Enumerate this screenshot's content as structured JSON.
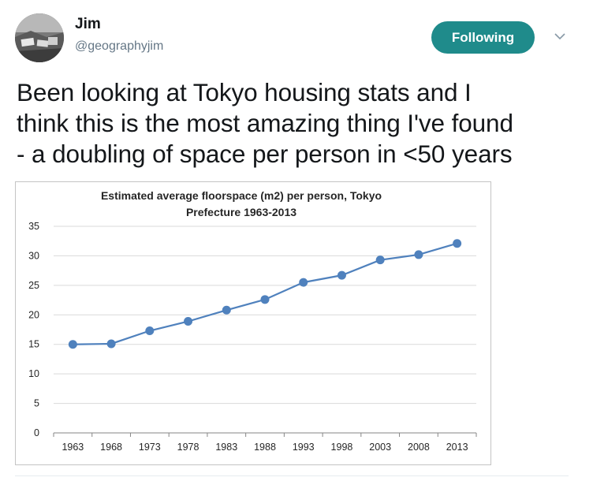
{
  "tweet": {
    "name": "Jim",
    "handle": "@geographyjim",
    "follow_label": "Following",
    "text_lines": [
      "Been looking at Tokyo housing stats and I",
      "think this is the most amazing thing I've found",
      "- a doubling of space per person in <50 years"
    ],
    "icons": {
      "more": "chevron-down-icon",
      "avatar": "profile-photo"
    },
    "colors": {
      "follow_button": "#1f8b8b",
      "line": "#4f81bd",
      "gridline": "#d9d9d9"
    }
  },
  "chart_data": {
    "type": "line",
    "title_lines": [
      "Estimated average floorspace (m2) per person, Tokyo",
      "Prefecture 1963-2013"
    ],
    "xlabel": "",
    "ylabel": "",
    "categories": [
      "1963",
      "1968",
      "1973",
      "1978",
      "1983",
      "1988",
      "1993",
      "1998",
      "2003",
      "2008",
      "2013"
    ],
    "series": [
      {
        "values": [
          15.0,
          15.1,
          17.3,
          18.9,
          20.8,
          22.6,
          25.5,
          26.7,
          29.3,
          30.2,
          32.1
        ]
      }
    ],
    "ylim": [
      0,
      35
    ],
    "yticks": [
      0,
      5,
      10,
      15,
      20,
      25,
      30,
      35
    ],
    "grid": true,
    "legend": "none"
  }
}
